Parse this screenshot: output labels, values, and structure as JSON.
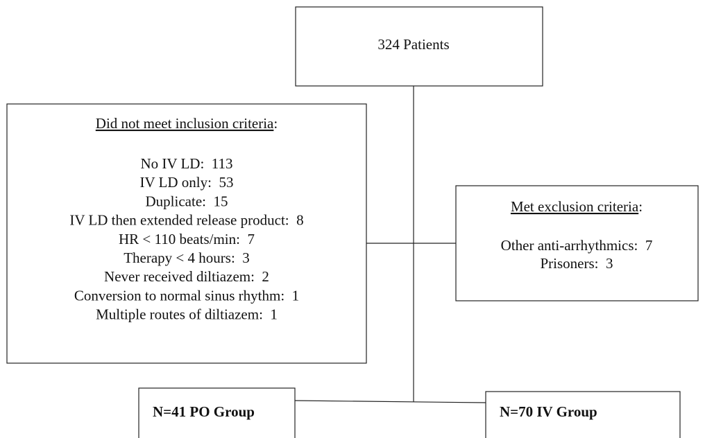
{
  "nodes": [
    {
      "label": "324 Patients"
    },
    {
      "heading": "Did not meet inclusion criteria",
      "heading_end": ":",
      "items": [
        "No IV LD:  113",
        "IV LD only:  53",
        "Duplicate:  15",
        "IV LD then extended release product:  8",
        "HR < 110 beats/min:  7",
        "Therapy < 4 hours:  3",
        "Never received diltiazem:  2",
        "Conversion to normal sinus rhythm:  1",
        "Multiple routes of diltiazem:  1"
      ]
    },
    {
      "heading": "Met exclusion criteria",
      "heading_end": ":",
      "items": [
        "Other anti-arrhythmics:  7",
        "Prisoners:  3"
      ]
    },
    {
      "label": "N=41 PO Group"
    },
    {
      "label": "N=70 IV Group"
    }
  ]
}
